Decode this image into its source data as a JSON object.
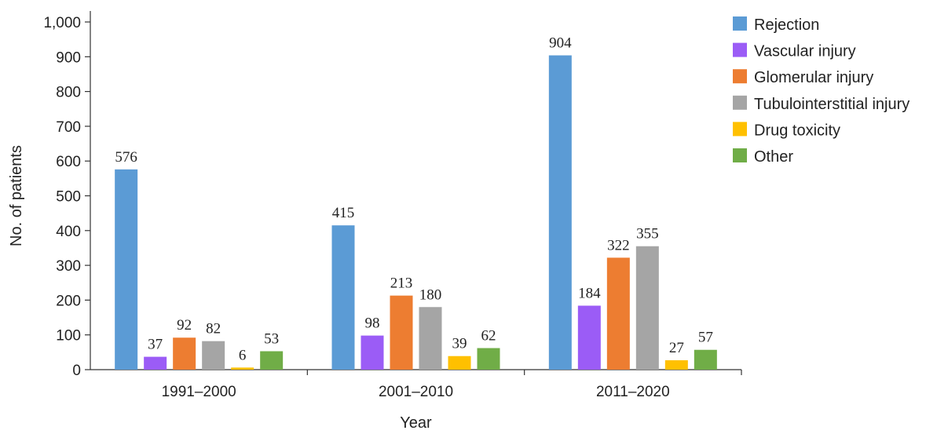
{
  "chart_data": {
    "type": "bar",
    "xlabel": "Year",
    "ylabel": "No. of patients",
    "ylim": [
      0,
      1000
    ],
    "yticks": [
      {
        "value": 0,
        "label": "0"
      },
      {
        "value": 100,
        "label": "100"
      },
      {
        "value": 200,
        "label": "200"
      },
      {
        "value": 300,
        "label": "300"
      },
      {
        "value": 400,
        "label": "400"
      },
      {
        "value": 500,
        "label": "500"
      },
      {
        "value": 600,
        "label": "600"
      },
      {
        "value": 700,
        "label": "700"
      },
      {
        "value": 800,
        "label": "800"
      },
      {
        "value": 900,
        "label": "900"
      },
      {
        "value": 1000,
        "label": "1,000"
      }
    ],
    "grid": false,
    "legend_position": "top-right",
    "categories": [
      "1991–2000",
      "2001–2010",
      "2011–2020"
    ],
    "series": [
      {
        "name": "Rejection",
        "color": "#5b9bd5",
        "values": [
          576,
          415,
          904
        ]
      },
      {
        "name": "Vascular injury",
        "color": "#9b5cf6",
        "values": [
          37,
          98,
          184
        ]
      },
      {
        "name": "Glomerular injury",
        "color": "#ed7d31",
        "values": [
          92,
          213,
          322
        ]
      },
      {
        "name": "Tubulointerstitial injury",
        "color": "#a5a5a5",
        "values": [
          82,
          180,
          355
        ]
      },
      {
        "name": "Drug toxicity",
        "color": "#ffc000",
        "values": [
          6,
          39,
          27
        ]
      },
      {
        "name": "Other",
        "color": "#70ad47",
        "values": [
          53,
          62,
          57
        ]
      }
    ]
  }
}
